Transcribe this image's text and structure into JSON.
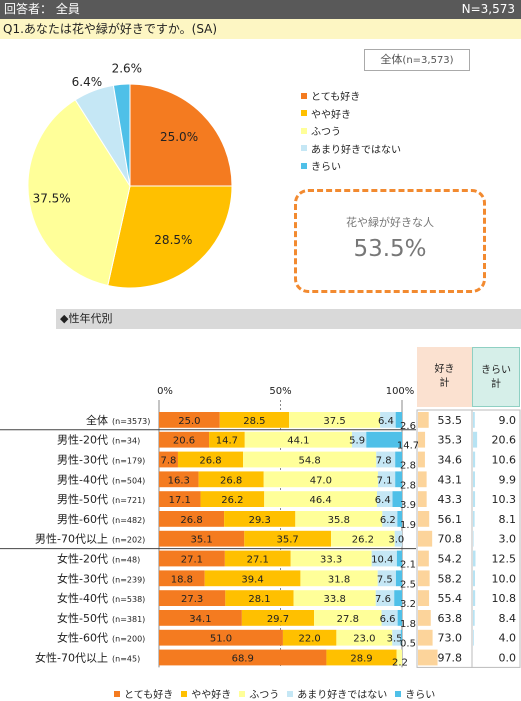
{
  "header": {
    "respondents_label": "回答者： 全員",
    "n_label": "N=3,573"
  },
  "question": "Q1.あなたは花や緑が好きですか。(SA)",
  "summary_box": {
    "label": "全体",
    "n": "(n=3,573)"
  },
  "highlight": {
    "label": "花や緑が好きな人",
    "value": "53.5%"
  },
  "section_title": "◆性年代別",
  "table_headers": {
    "like": [
      "好き",
      "計"
    ],
    "dislike": [
      "きらい",
      "計"
    ]
  },
  "axis_ticks": [
    "0%",
    "50%",
    "100%"
  ],
  "colors": [
    "#f47b20",
    "#ffc000",
    "#ffff99",
    "#c5e7f5",
    "#4fc0e8"
  ],
  "chart_data": [
    {
      "type": "pie",
      "categories": [
        "とても好き",
        "やや好き",
        "ふつう",
        "あまり好きではない",
        "きらい"
      ],
      "values": [
        25.0,
        28.5,
        37.5,
        6.4,
        2.6
      ],
      "value_labels": [
        "25.0%",
        "28.5%",
        "37.5%",
        "6.4%",
        "2.6%"
      ]
    },
    {
      "type": "bar",
      "orientation": "horizontal-stacked",
      "categories": [
        {
          "label": "全体",
          "n": "(n=3573)"
        },
        {
          "label": "男性-20代",
          "n": "(n=34)"
        },
        {
          "label": "男性-30代",
          "n": "(n=179)"
        },
        {
          "label": "男性-40代",
          "n": "(n=504)"
        },
        {
          "label": "男性-50代",
          "n": "(n=721)"
        },
        {
          "label": "男性-60代",
          "n": "(n=482)"
        },
        {
          "label": "男性-70代以上",
          "n": "(n=202)"
        },
        {
          "label": "女性-20代",
          "n": "(n=48)"
        },
        {
          "label": "女性-30代",
          "n": "(n=239)"
        },
        {
          "label": "女性-40代",
          "n": "(n=538)"
        },
        {
          "label": "女性-50代",
          "n": "(n=381)"
        },
        {
          "label": "女性-60代",
          "n": "(n=200)"
        },
        {
          "label": "女性-70代以上",
          "n": "(n=45)"
        }
      ],
      "series": [
        {
          "name": "とても好き",
          "values": [
            25.0,
            20.6,
            7.8,
            16.3,
            17.1,
            26.8,
            35.1,
            27.1,
            18.8,
            27.3,
            34.1,
            51.0,
            68.9
          ]
        },
        {
          "name": "やや好き",
          "values": [
            28.5,
            14.7,
            26.8,
            26.8,
            26.2,
            29.3,
            35.7,
            27.1,
            39.4,
            28.1,
            29.7,
            22.0,
            28.9
          ]
        },
        {
          "name": "ふつう",
          "values": [
            37.5,
            44.1,
            54.8,
            47.0,
            46.4,
            35.8,
            26.2,
            33.3,
            31.8,
            33.8,
            27.8,
            23.0,
            2.2
          ]
        },
        {
          "name": "あまり好きではない",
          "values": [
            6.4,
            5.9,
            7.8,
            7.1,
            6.4,
            6.2,
            3.0,
            10.4,
            7.5,
            7.6,
            6.6,
            3.5,
            0.0
          ]
        },
        {
          "name": "きらい",
          "values": [
            2.6,
            14.7,
            2.8,
            2.8,
            3.9,
            1.9,
            0.0,
            2.1,
            2.5,
            3.2,
            1.8,
            0.5,
            0.0
          ]
        }
      ],
      "xlim": [
        0,
        100
      ],
      "like_total": [
        53.5,
        35.3,
        34.6,
        43.1,
        43.3,
        56.1,
        70.8,
        54.2,
        58.2,
        55.4,
        63.8,
        73.0,
        97.8
      ],
      "dislike_total": [
        9.0,
        20.6,
        10.6,
        9.9,
        10.3,
        8.1,
        3.0,
        12.5,
        10.0,
        10.8,
        8.4,
        4.0,
        0.0
      ],
      "legend": [
        "とても好き",
        "やや好き",
        "ふつう",
        "あまり好きではない",
        "きらい"
      ]
    }
  ]
}
